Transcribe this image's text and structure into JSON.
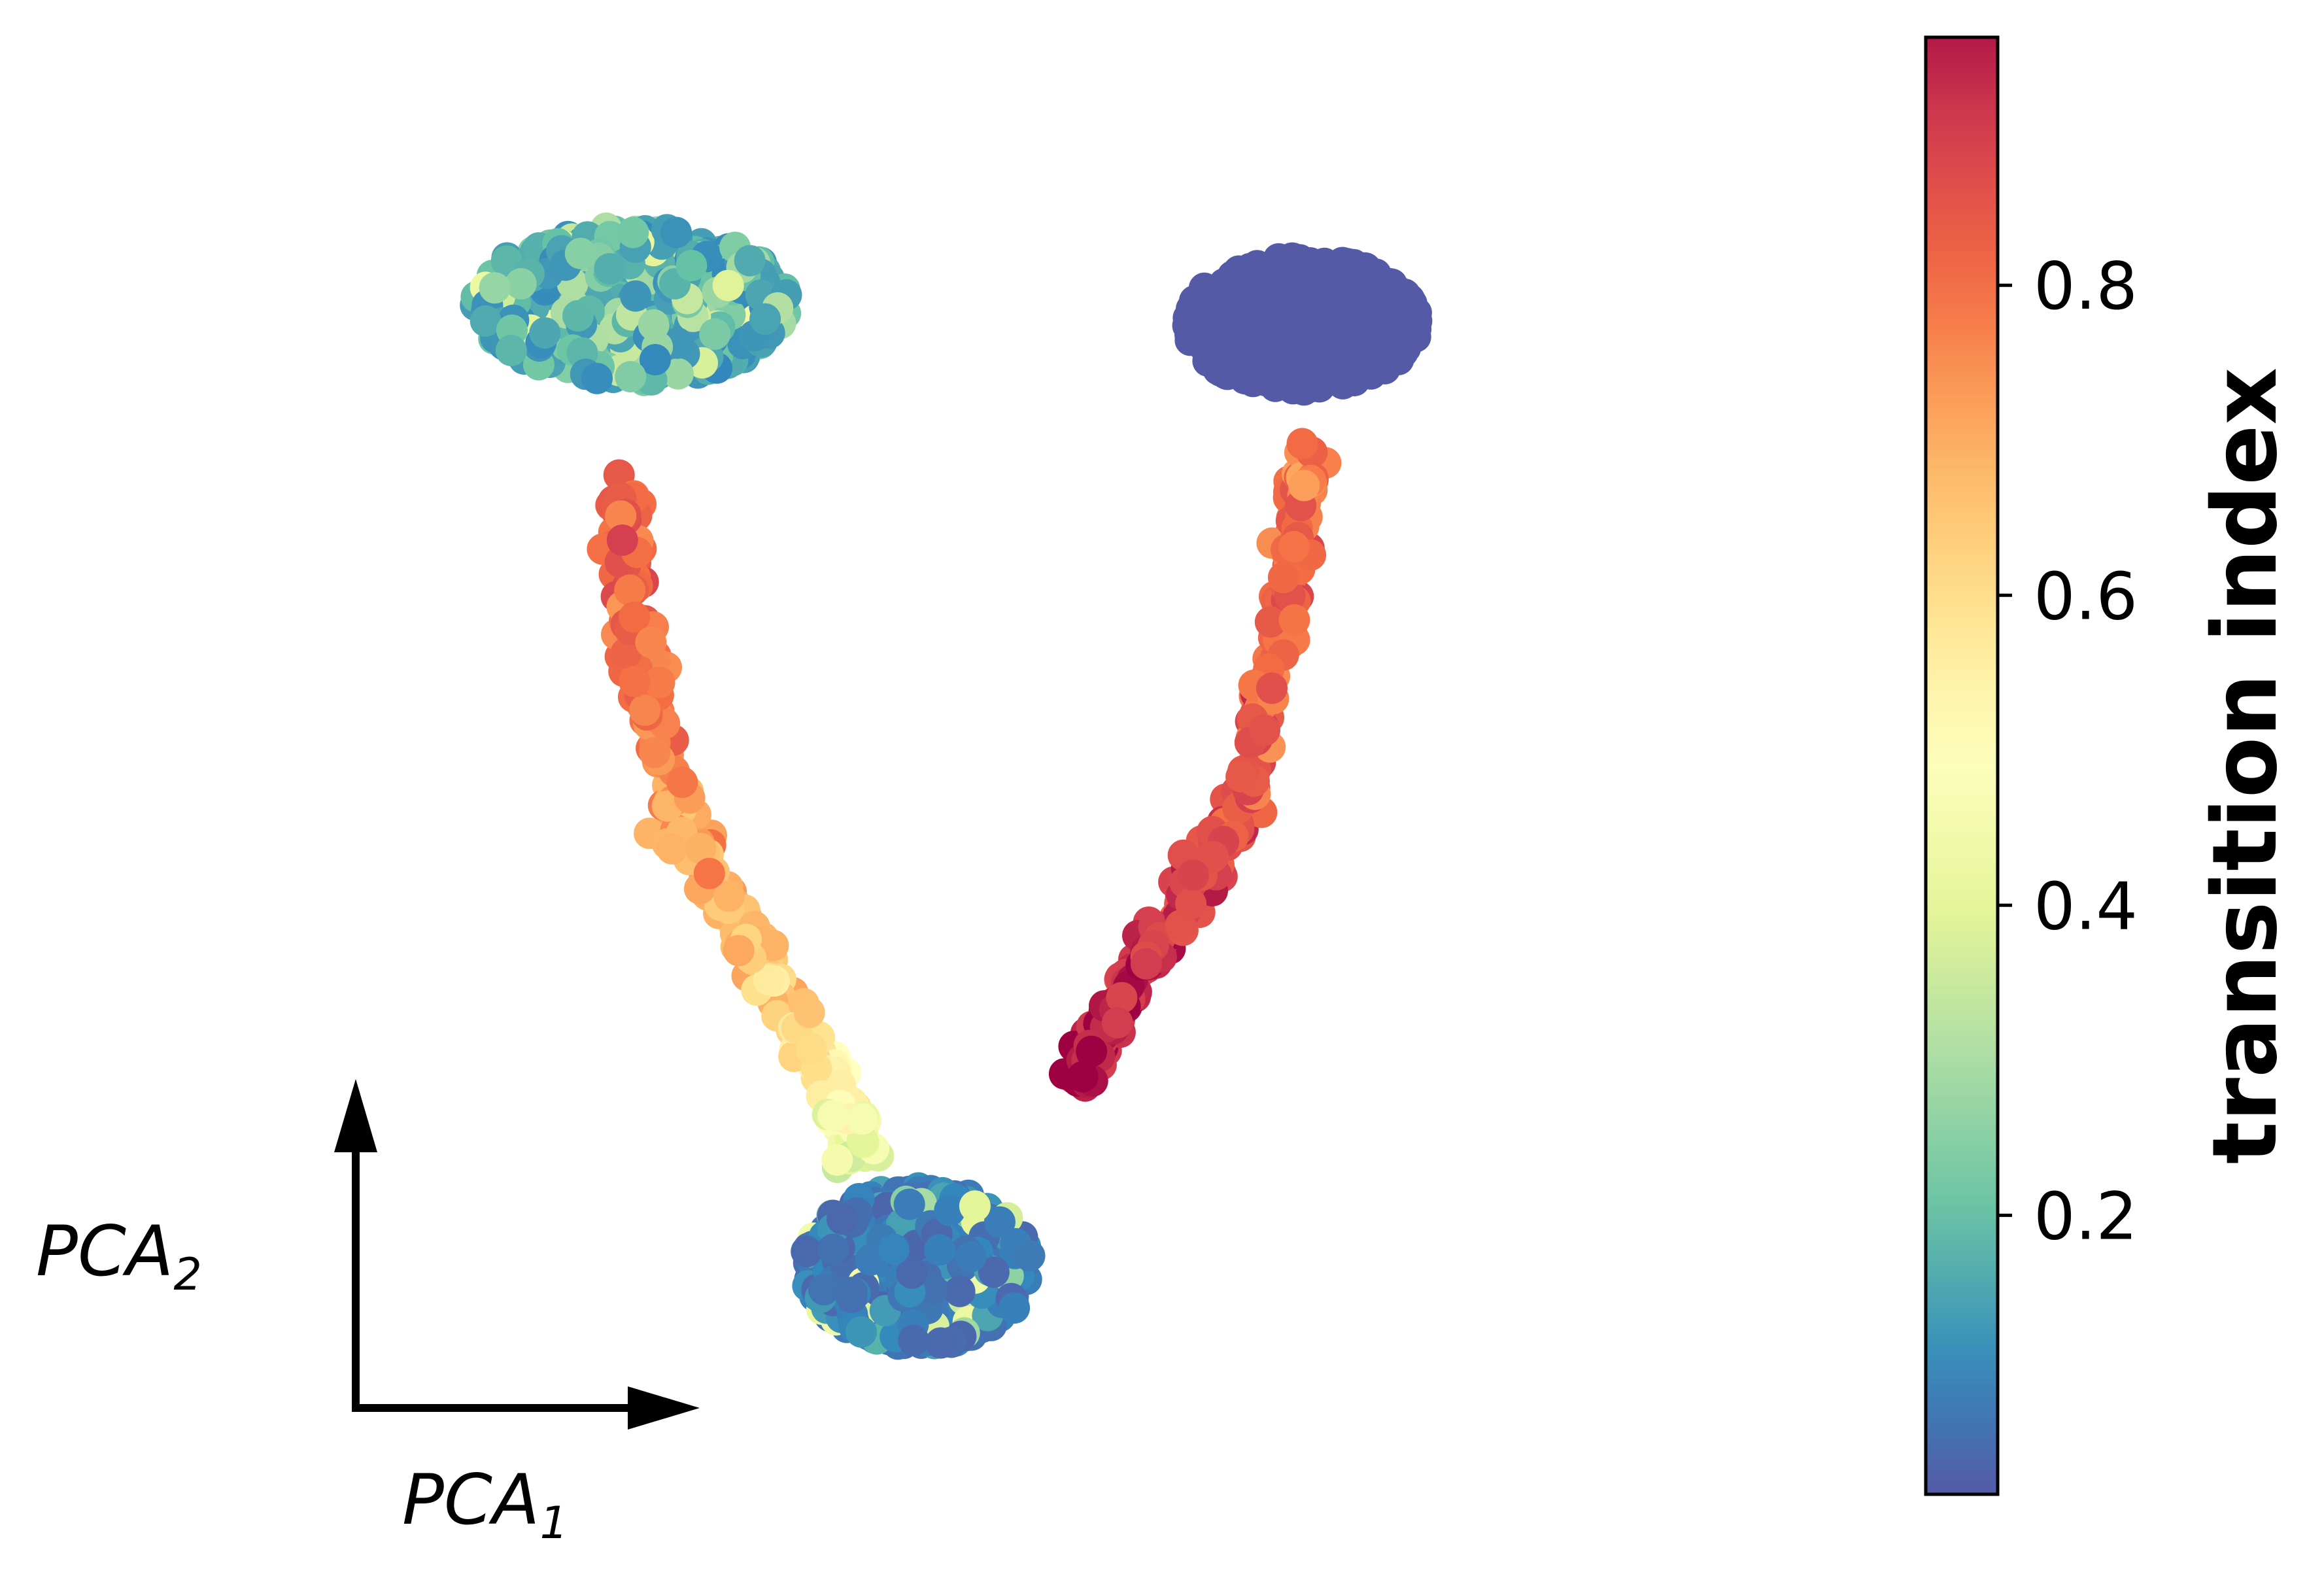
{
  "chart_data": {
    "type": "scatter",
    "title": "",
    "xlabel": "PCA",
    "xlabel_subscript": "1",
    "ylabel": "PCA",
    "ylabel_subscript": "2",
    "axis_ticks_shown": false,
    "grid": false,
    "legend": "none",
    "colormap": "Spectral_r",
    "colorbar": {
      "label": "transition index",
      "placement": "right",
      "range": [
        0.02,
        0.96
      ],
      "ticks": [
        0.2,
        0.4,
        0.6,
        0.8
      ],
      "tick_labels": [
        "0.2",
        "0.4",
        "0.6",
        "0.8"
      ]
    },
    "colormap_stops": [
      {
        "value": 0.0,
        "color": "#5e4fa2"
      },
      {
        "value": 0.1,
        "color": "#3288bd"
      },
      {
        "value": 0.2,
        "color": "#66c2a5"
      },
      {
        "value": 0.3,
        "color": "#abdda4"
      },
      {
        "value": 0.4,
        "color": "#e6f598"
      },
      {
        "value": 0.5,
        "color": "#ffffbf"
      },
      {
        "value": 0.6,
        "color": "#fee08b"
      },
      {
        "value": 0.7,
        "color": "#fdae61"
      },
      {
        "value": 0.8,
        "color": "#f46d43"
      },
      {
        "value": 0.9,
        "color": "#d53e4f"
      },
      {
        "value": 1.0,
        "color": "#9e0142"
      }
    ],
    "xlim": [
      0,
      100
    ],
    "ylim": [
      0,
      100
    ],
    "clusters": [
      {
        "center": [
          20.5,
          84.5
        ],
        "spread": [
          11.0,
          5.8
        ],
        "count": 520,
        "ti_mean": 0.1,
        "ti_sd": 0.1
      },
      {
        "center": [
          67.5,
          83.0
        ],
        "spread": [
          8.2,
          5.0
        ],
        "count": 560,
        "ti_mean": 0.02,
        "ti_sd": 0.0
      },
      {
        "center": [
          40.5,
          12.0
        ],
        "spread": [
          8.0,
          6.0
        ],
        "count": 560,
        "ti_mean": 0.04,
        "ti_sd": 0.05
      }
    ],
    "paths": [
      {
        "points": [
          [
            19.5,
            70.5
          ],
          [
            21.0,
            58.0
          ],
          [
            24.0,
            45.0
          ],
          [
            29.0,
            35.5
          ],
          [
            34.5,
            26.0
          ],
          [
            36.5,
            20.0
          ]
        ],
        "count": 300,
        "width": 1.4,
        "ti_values": [
          0.85,
          0.8,
          0.72,
          0.65,
          0.55,
          0.4
        ]
      },
      {
        "points": [
          [
            51.5,
            26.0
          ],
          [
            58.0,
            37.5
          ],
          [
            63.0,
            45.5
          ],
          [
            66.5,
            62.0
          ],
          [
            68.0,
            73.5
          ]
        ],
        "count": 290,
        "width": 1.1,
        "ti_values": [
          0.96,
          0.91,
          0.86,
          0.82,
          0.78
        ]
      }
    ]
  }
}
